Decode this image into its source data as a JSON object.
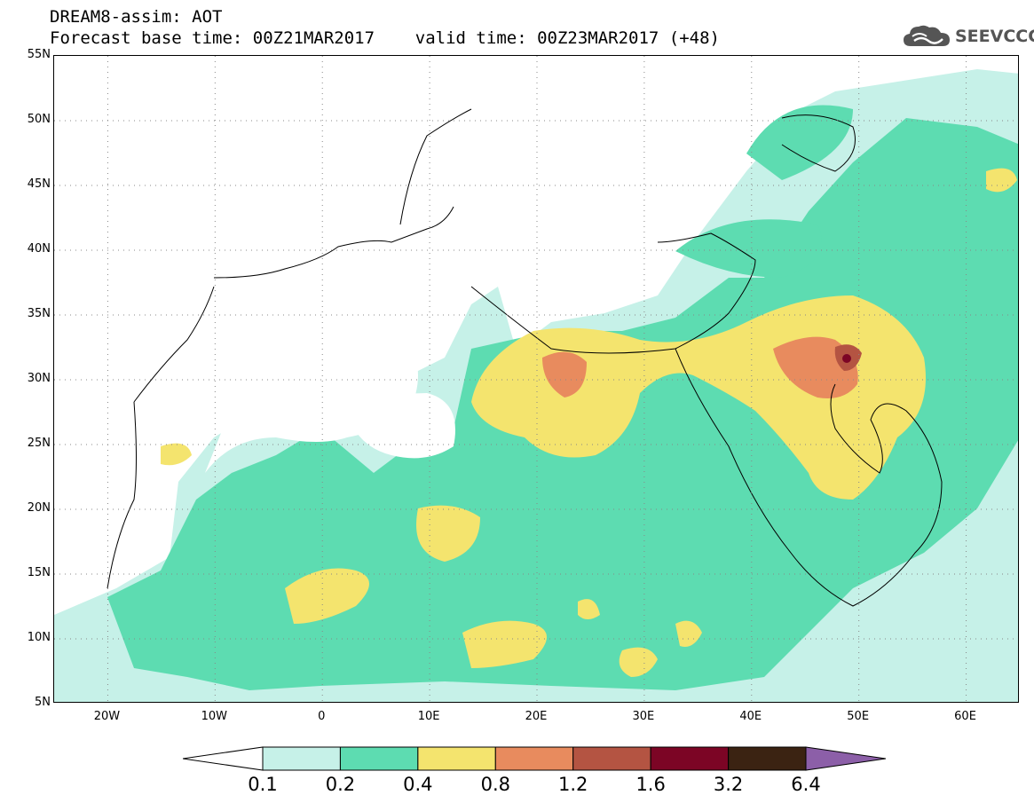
{
  "header": {
    "line1": "DREAM8-assim: AOT",
    "line2": "Forecast base time: 00Z21MAR2017    valid time: 00Z23MAR2017 (+48)"
  },
  "logo": {
    "text": "SEEVCCC",
    "icon": "cloud-icon"
  },
  "map": {
    "lat_labels": [
      "55N",
      "50N",
      "45N",
      "40N",
      "35N",
      "30N",
      "25N",
      "20N",
      "15N",
      "10N",
      "5N"
    ],
    "lon_labels": [
      "20W",
      "10W",
      "0",
      "10E",
      "20E",
      "30E",
      "40E",
      "50E",
      "60E"
    ],
    "lat_range": [
      5,
      55
    ],
    "lon_range": [
      -25,
      65
    ],
    "grid": "dotted"
  },
  "colorbar": {
    "labels": [
      "0.1",
      "0.2",
      "0.4",
      "0.8",
      "1.2",
      "1.6",
      "3.2",
      "6.4"
    ],
    "colors": [
      "#ffffff",
      "#c6f1e8",
      "#5ddcb1",
      "#f4e46e",
      "#e88b5e",
      "#b45442",
      "#7c0525",
      "#3b2312",
      "#8c5fa8"
    ]
  }
}
